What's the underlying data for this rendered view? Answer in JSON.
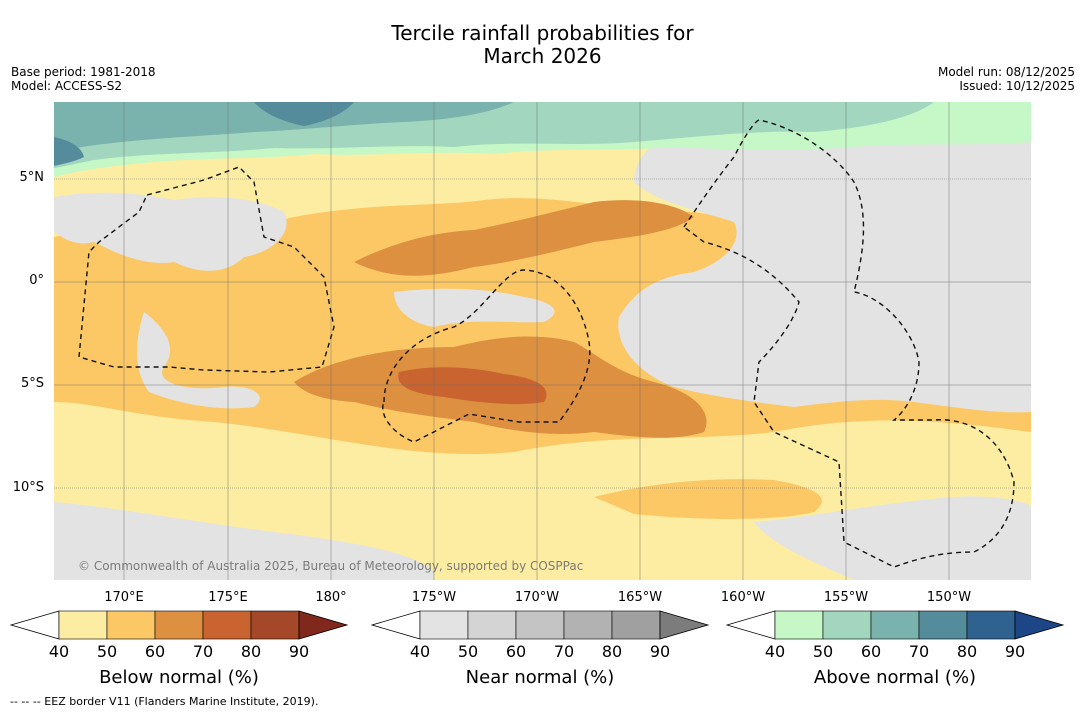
{
  "title_line1": "Tercile rainfall probabilities for",
  "title_line2": "March 2026",
  "base_period": "Base period: 1981-2018",
  "model": "Model: ACCESS-S2",
  "model_run": "Model run: 08/12/2025",
  "issued": "Issued: 10/12/2025",
  "copyright": "© Commonwealth of Australia 2025, Bureau of Meteorology, supported by COSPPac",
  "footer": "-- -- -- EEZ border V11 (Flanders Marine Institute, 2019).",
  "lat_labels": [
    "5°N",
    "0°",
    "5°S",
    "10°S"
  ],
  "lon_labels": [
    "170°E",
    "175°E",
    "180°",
    "175°W",
    "170°W",
    "165°W",
    "160°W",
    "155°W",
    "150°W"
  ],
  "colorbars": [
    {
      "label": "Below normal (%)",
      "ticks": [
        "40",
        "50",
        "60",
        "70",
        "80",
        "90"
      ],
      "colors": [
        "#ffffff",
        "#fdeda2",
        "#fbc865",
        "#dd9040",
        "#c96430",
        "#a5482a",
        "#80281c"
      ]
    },
    {
      "label": "Near normal (%)",
      "ticks": [
        "40",
        "50",
        "60",
        "70",
        "80",
        "90"
      ],
      "colors": [
        "#ffffff",
        "#e3e3e3",
        "#d4d4d4",
        "#c4c4c4",
        "#b2b2b2",
        "#a0a0a0",
        "#7c7c7c"
      ]
    },
    {
      "label": "Above normal (%)",
      "ticks": [
        "40",
        "50",
        "60",
        "70",
        "80",
        "90"
      ],
      "colors": [
        "#ffffff",
        "#c6f7c6",
        "#a2d6be",
        "#7ab3ad",
        "#548c9c",
        "#30628f",
        "#1c4686"
      ]
    }
  ]
}
